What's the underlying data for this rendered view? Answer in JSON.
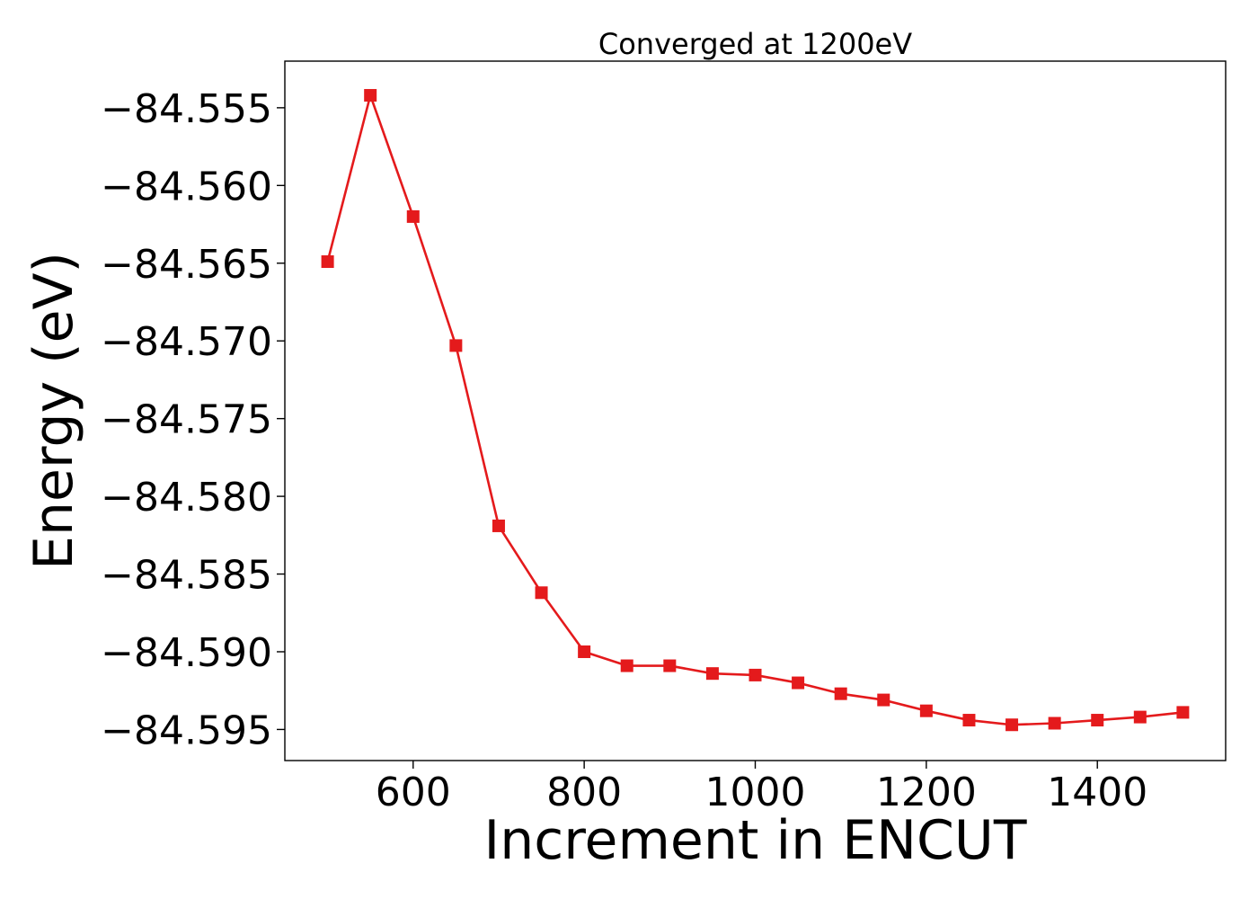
{
  "chart_data": {
    "type": "line",
    "title": "Converged at 1200eV",
    "xlabel": "Increment in ENCUT",
    "ylabel": "Energy (eV)",
    "xlim": [
      450,
      1550
    ],
    "ylim": [
      -84.597,
      -84.552
    ],
    "xticks": [
      600,
      800,
      1000,
      1200,
      1400
    ],
    "xtick_labels": [
      "600",
      "800",
      "1000",
      "1200",
      "1400"
    ],
    "yticks": [
      -84.555,
      -84.56,
      -84.565,
      -84.57,
      -84.575,
      -84.58,
      -84.585,
      -84.59,
      -84.595
    ],
    "ytick_labels": [
      "−84.555",
      "−84.560",
      "−84.565",
      "−84.570",
      "−84.575",
      "−84.580",
      "−84.585",
      "−84.590",
      "−84.595"
    ],
    "grid": false,
    "marker": "square",
    "series": [
      {
        "color": "#e41a1c",
        "x": [
          500,
          550,
          600,
          650,
          700,
          750,
          800,
          850,
          900,
          950,
          1000,
          1050,
          1100,
          1150,
          1200,
          1250,
          1300,
          1350,
          1400,
          1450,
          1500
        ],
        "y": [
          -84.5649,
          -84.5542,
          -84.562,
          -84.5703,
          -84.5819,
          -84.5862,
          -84.59,
          -84.5909,
          -84.5909,
          -84.5914,
          -84.5915,
          -84.592,
          -84.5927,
          -84.5931,
          -84.5938,
          -84.5944,
          -84.5947,
          -84.5946,
          -84.5944,
          -84.5942,
          -84.5939
        ]
      }
    ]
  }
}
